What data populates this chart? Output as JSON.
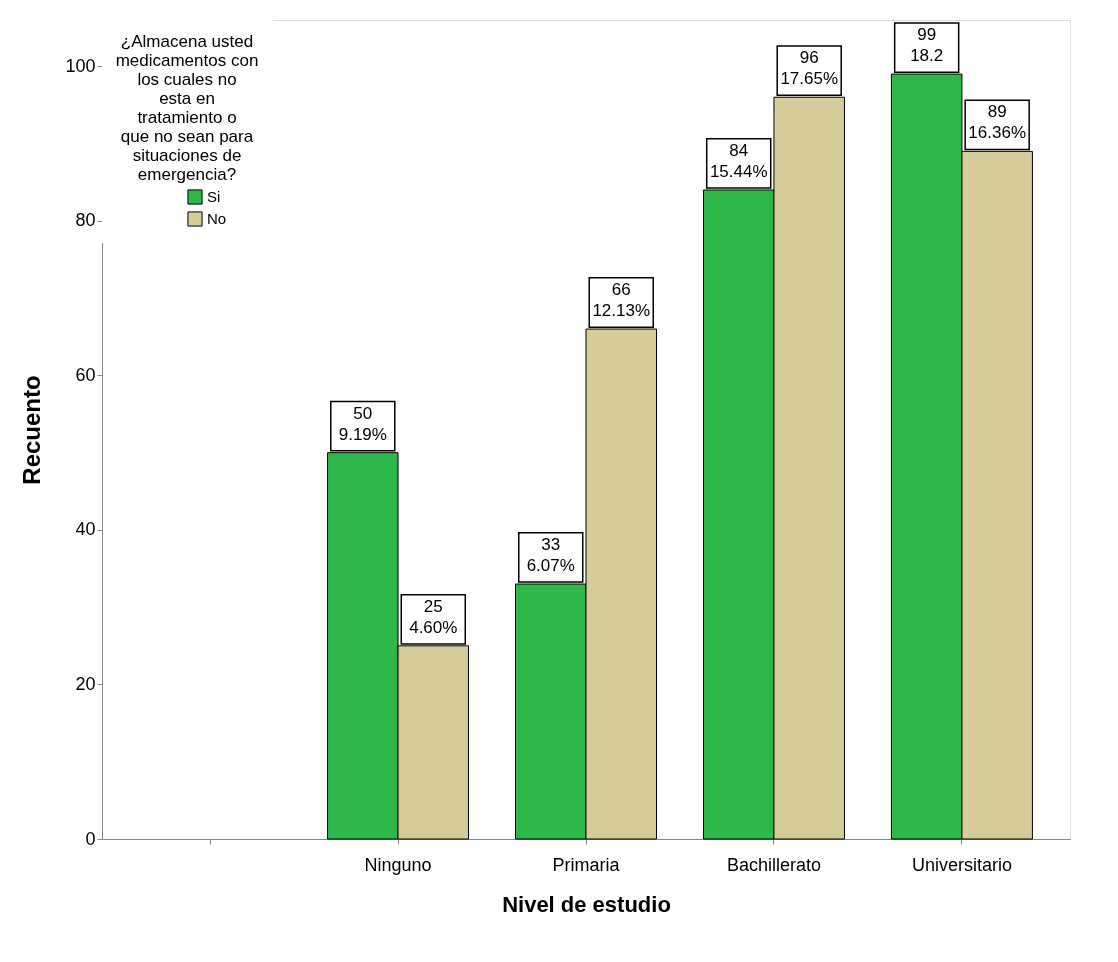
{
  "chart_data": {
    "type": "bar",
    "xlabel": "Nivel de estudio",
    "ylabel": "Recuento",
    "legend_title": "¿Almacena usted medicamentos con los cuales no esta en tratamiento o que no sean para situaciones de emergencia?",
    "categories": [
      null,
      "Ninguno",
      "Primaria",
      "Bachillerato",
      "Universitario"
    ],
    "series": [
      {
        "name": "Si",
        "color": "#2eb84a",
        "values": [
          null,
          50,
          33,
          84,
          99
        ],
        "value_labels": [
          null,
          "50\n9.19%",
          "33\n6.07%",
          "84\n15.44%",
          "99\n18.2"
        ]
      },
      {
        "name": "No",
        "color": "#d6cd9a",
        "values": [
          null,
          25,
          66,
          96,
          89
        ],
        "value_labels": [
          null,
          "25\n4.60%",
          "66\n12.13%",
          "96\n17.65%",
          "89\n16.36%"
        ]
      }
    ],
    "ylim": [
      0,
      106
    ],
    "yticks": [
      0,
      20,
      40,
      60,
      80,
      100
    ],
    "grid": false,
    "legend": "top left"
  }
}
